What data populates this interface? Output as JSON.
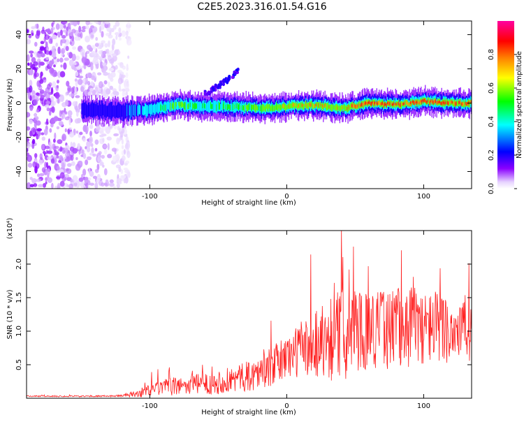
{
  "title": "C2E5.2023.316.01.54.G16",
  "colorbar": {
    "label": "Normalized spectral amplitude",
    "ticks": [
      "0.0",
      "0.2",
      "0.4",
      "0.6",
      "0.8"
    ]
  },
  "chart_data": [
    {
      "type": "heatmap",
      "title": "C2E5.2023.316.01.54.G16",
      "xlabel": "Height of straight line (km)",
      "ylabel": "Frequency (Hz)",
      "xlim": [
        -190,
        135
      ],
      "ylim": [
        -50,
        48
      ],
      "xticks": [
        "-100",
        "0",
        "100"
      ],
      "yticks": [
        "-40",
        "-20",
        "0",
        "20",
        "40"
      ],
      "colorscale": [
        "#ffffff",
        "#8a00ff",
        "#0000ff",
        "#00ffff",
        "#00ff00",
        "#ffff00",
        "#ff8000",
        "#ff0000",
        "#ff00a0"
      ],
      "value_range": [
        0,
        1
      ],
      "ridge": {
        "x": [
          -140,
          -120,
          -100,
          -80,
          -60,
          -40,
          -20,
          0,
          20,
          40,
          60,
          80,
          100,
          120,
          135
        ],
        "freq": [
          -4,
          -5,
          -4,
          -1,
          -2,
          -2,
          -3,
          -2,
          -1,
          -3,
          0,
          -1,
          1,
          0,
          0
        ],
        "peak_amplitude": [
          0.25,
          0.3,
          0.45,
          0.6,
          0.5,
          0.55,
          0.65,
          0.75,
          0.8,
          0.75,
          0.95,
          0.9,
          0.95,
          0.9,
          0.85
        ]
      },
      "spur": {
        "x": [
          -60,
          -50,
          -40,
          -35
        ],
        "freq": [
          5,
          10,
          15,
          20
        ]
      },
      "noise_region_x": [
        -190,
        -115
      ]
    },
    {
      "type": "line",
      "xlabel": "Height of straight line (km)",
      "ylabel": "SNR (10 * v/v)",
      "y_multiplier": "(x10⁴)",
      "xlim": [
        -190,
        135
      ],
      "ylim": [
        0,
        2.5
      ],
      "xticks": [
        "-100",
        "0",
        "100"
      ],
      "yticks": [
        "0.5",
        "1.0",
        "1.5",
        "2.0"
      ],
      "series": [
        {
          "color": "#ff2020",
          "x": [
            -190,
            -170,
            -150,
            -130,
            -120,
            -110,
            -100,
            -90,
            -80,
            -70,
            -60,
            -50,
            -40,
            -30,
            -20,
            -10,
            0,
            10,
            20,
            30,
            40,
            50,
            60,
            70,
            80,
            90,
            100,
            110,
            120,
            130,
            135
          ],
          "y": [
            0.03,
            0.03,
            0.03,
            0.03,
            0.04,
            0.06,
            0.12,
            0.16,
            0.18,
            0.2,
            0.22,
            0.24,
            0.28,
            0.32,
            0.38,
            0.48,
            0.62,
            0.72,
            0.82,
            0.9,
            0.95,
            1.0,
            1.05,
            1.02,
            1.05,
            1.1,
            1.05,
            1.08,
            1.02,
            1.05,
            1.0
          ],
          "amp": [
            0.01,
            0.01,
            0.01,
            0.01,
            0.02,
            0.05,
            0.1,
            0.12,
            0.14,
            0.15,
            0.16,
            0.18,
            0.2,
            0.22,
            0.25,
            0.3,
            0.35,
            0.4,
            0.55,
            0.65,
            0.7,
            0.65,
            0.6,
            0.6,
            0.6,
            0.65,
            0.55,
            0.55,
            0.5,
            0.5,
            0.5
          ]
        }
      ]
    }
  ]
}
